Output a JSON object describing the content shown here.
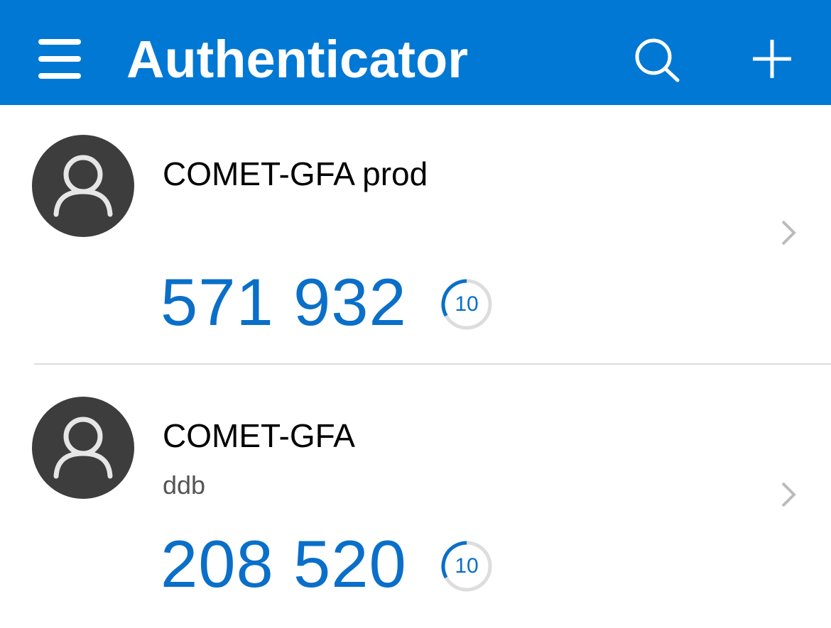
{
  "header": {
    "title": "Authenticator",
    "menu_icon": "hamburger-icon",
    "search_icon": "search-icon",
    "add_icon": "plus-icon",
    "color": "#0078d4"
  },
  "accounts": [
    {
      "name": "COMET-GFA prod",
      "subtitle": "",
      "code": "571 932",
      "seconds_remaining": "10",
      "time_fraction_remaining": 0.33
    },
    {
      "name": "COMET-GFA",
      "subtitle": "ddb",
      "code": "208 520",
      "seconds_remaining": "10",
      "time_fraction_remaining": 0.33
    }
  ],
  "colors": {
    "code": "#0a6fc8",
    "avatar": "#3d3d3d"
  }
}
